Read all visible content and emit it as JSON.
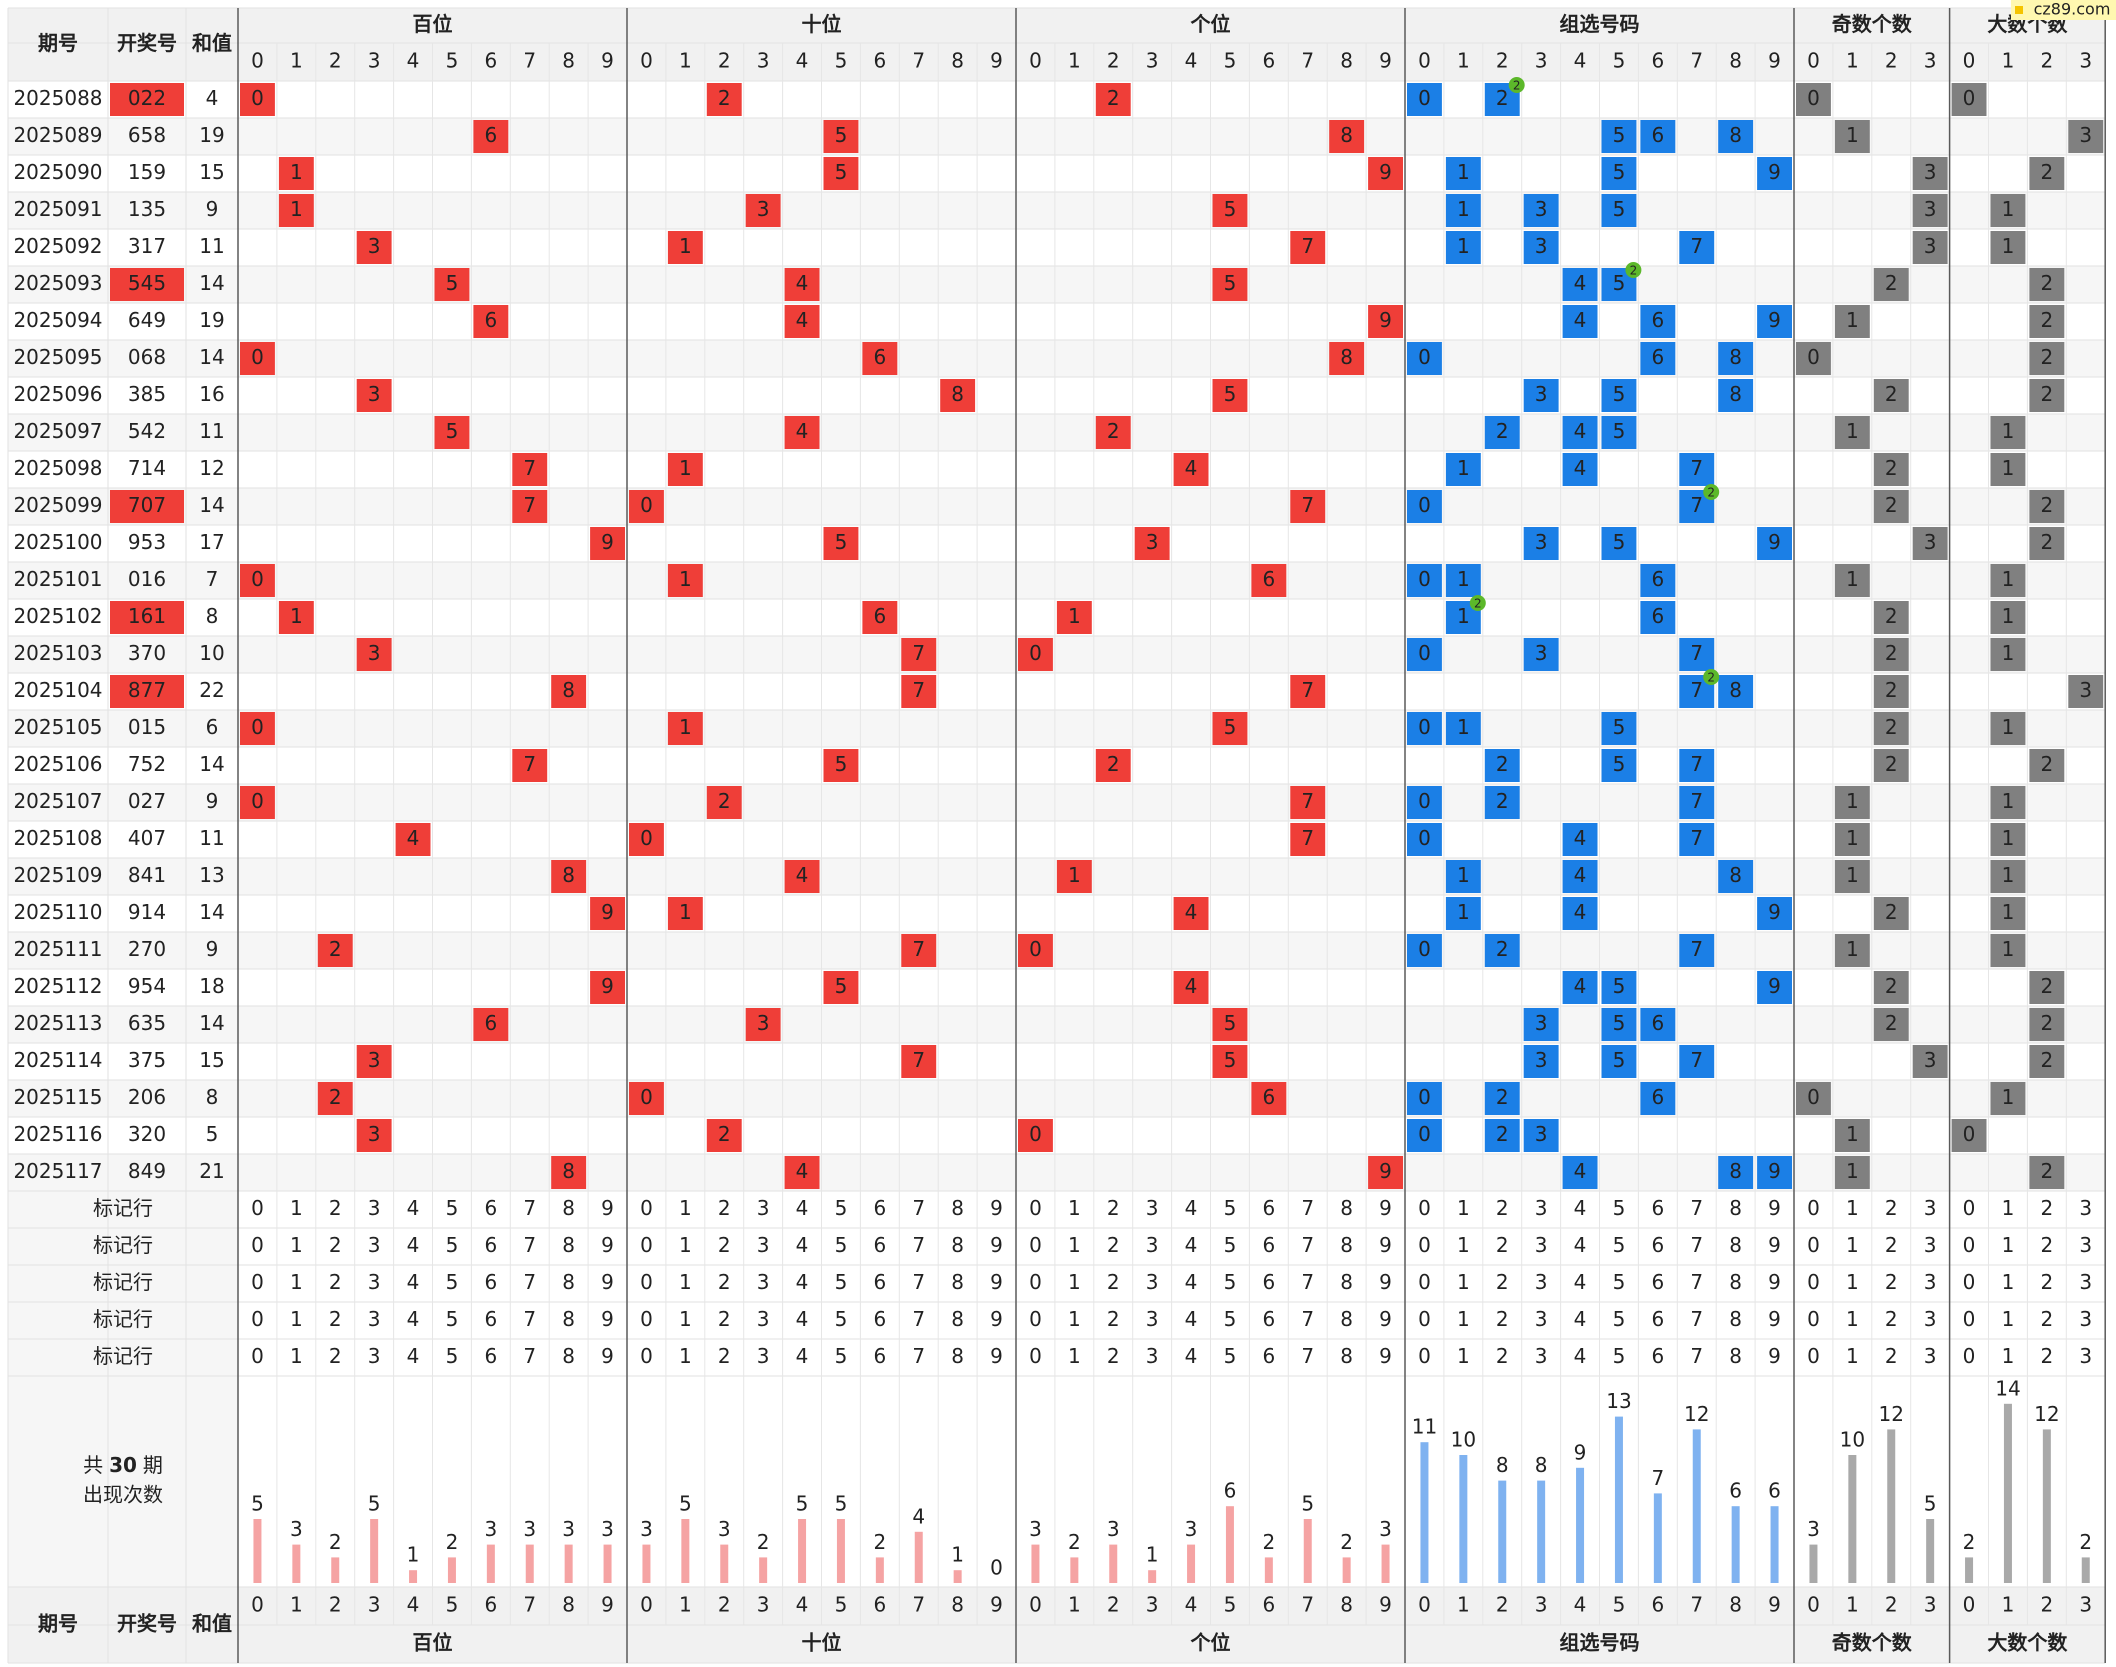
{
  "header": {
    "period": "期号",
    "number": "开奖号",
    "sum": "和值"
  },
  "groups": [
    {
      "title": "百位",
      "kind": "hundreds",
      "color": "#ef3e38",
      "bar_color": "#f5a3a3",
      "label_color": "#e5514a",
      "digits": [
        0,
        1,
        2,
        3,
        4,
        5,
        6,
        7,
        8,
        9
      ],
      "counts": [
        5,
        3,
        2,
        5,
        1,
        2,
        3,
        3,
        3,
        3
      ]
    },
    {
      "title": "十位",
      "kind": "tens",
      "color": "#ef3e38",
      "bar_color": "#f5a3a3",
      "label_color": "#e5514a",
      "digits": [
        0,
        1,
        2,
        3,
        4,
        5,
        6,
        7,
        8,
        9
      ],
      "counts": [
        3,
        5,
        3,
        2,
        5,
        5,
        2,
        4,
        1,
        0
      ]
    },
    {
      "title": "个位",
      "kind": "units",
      "color": "#ef3e38",
      "bar_color": "#f5a3a3",
      "label_color": "#e5514a",
      "digits": [
        0,
        1,
        2,
        3,
        4,
        5,
        6,
        7,
        8,
        9
      ],
      "counts": [
        3,
        2,
        3,
        1,
        3,
        6,
        2,
        5,
        2,
        3
      ]
    },
    {
      "title": "组选号码",
      "kind": "combo",
      "color": "#1b7fe6",
      "bar_color": "#7fb2f0",
      "label_color": "#2a76cf",
      "digits": [
        0,
        1,
        2,
        3,
        4,
        5,
        6,
        7,
        8,
        9
      ],
      "counts": [
        11,
        10,
        8,
        8,
        9,
        13,
        7,
        12,
        6,
        6
      ]
    },
    {
      "title": "奇数个数",
      "kind": "odd",
      "color": "#808080",
      "bar_color": "#a9a9a9",
      "label_color": "#666666",
      "digits": [
        0,
        1,
        2,
        3
      ],
      "counts": [
        3,
        10,
        12,
        5
      ]
    },
    {
      "title": "大数个数",
      "kind": "big",
      "color": "#808080",
      "bar_color": "#a9a9a9",
      "label_color": "#666666",
      "digits": [
        0,
        1,
        2,
        3
      ],
      "counts": [
        2,
        14,
        12,
        2
      ]
    }
  ],
  "rows": [
    {
      "period": "2025088",
      "number": "022",
      "sum": 4
    },
    {
      "period": "2025089",
      "number": "658",
      "sum": 19
    },
    {
      "period": "2025090",
      "number": "159",
      "sum": 15
    },
    {
      "period": "2025091",
      "number": "135",
      "sum": 9
    },
    {
      "period": "2025092",
      "number": "317",
      "sum": 11
    },
    {
      "period": "2025093",
      "number": "545",
      "sum": 14
    },
    {
      "period": "2025094",
      "number": "649",
      "sum": 19
    },
    {
      "period": "2025095",
      "number": "068",
      "sum": 14
    },
    {
      "period": "2025096",
      "number": "385",
      "sum": 16
    },
    {
      "period": "2025097",
      "number": "542",
      "sum": 11
    },
    {
      "period": "2025098",
      "number": "714",
      "sum": 12
    },
    {
      "period": "2025099",
      "number": "707",
      "sum": 14
    },
    {
      "period": "2025100",
      "number": "953",
      "sum": 17
    },
    {
      "period": "2025101",
      "number": "016",
      "sum": 7
    },
    {
      "period": "2025102",
      "number": "161",
      "sum": 8
    },
    {
      "period": "2025103",
      "number": "370",
      "sum": 10
    },
    {
      "period": "2025104",
      "number": "877",
      "sum": 22
    },
    {
      "period": "2025105",
      "number": "015",
      "sum": 6
    },
    {
      "period": "2025106",
      "number": "752",
      "sum": 14
    },
    {
      "period": "2025107",
      "number": "027",
      "sum": 9
    },
    {
      "period": "2025108",
      "number": "407",
      "sum": 11
    },
    {
      "period": "2025109",
      "number": "841",
      "sum": 13
    },
    {
      "period": "2025110",
      "number": "914",
      "sum": 14
    },
    {
      "period": "2025111",
      "number": "270",
      "sum": 9
    },
    {
      "period": "2025112",
      "number": "954",
      "sum": 18
    },
    {
      "period": "2025113",
      "number": "635",
      "sum": 14
    },
    {
      "period": "2025114",
      "number": "375",
      "sum": 15
    },
    {
      "period": "2025115",
      "number": "206",
      "sum": 8
    },
    {
      "period": "2025116",
      "number": "320",
      "sum": 5
    },
    {
      "period": "2025117",
      "number": "849",
      "sum": 21
    }
  ],
  "repeat_badge": "2",
  "mark_rows": [
    "标记行",
    "标记行",
    "标记行",
    "标记行",
    "标记行"
  ],
  "stats": {
    "prefix": "共",
    "periods": 30,
    "suffix": "期",
    "label": "出现次数"
  },
  "watermark": "cz89.com"
}
